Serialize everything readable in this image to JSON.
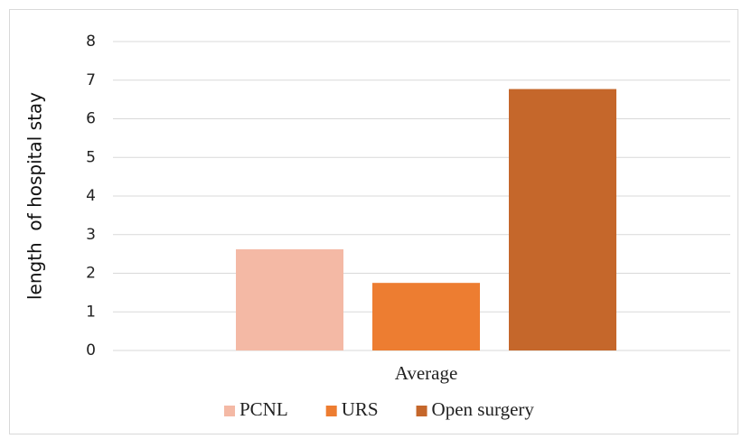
{
  "chart_data": {
    "type": "bar",
    "y_label": "length  of hospital stay",
    "categories": [
      "Average"
    ],
    "series": [
      {
        "name": "PCNL",
        "color": "#f4b9a5",
        "values": [
          2.62
        ]
      },
      {
        "name": "URS",
        "color": "#ed7d31",
        "values": [
          1.75
        ]
      },
      {
        "name": "Open surgery",
        "color": "#c5672b",
        "values": [
          6.77
        ]
      }
    ],
    "ylim": [
      0,
      8
    ],
    "yticks": [
      0,
      1,
      2,
      3,
      4,
      5,
      6,
      7,
      8
    ],
    "grid": true,
    "legend": "bottom"
  }
}
